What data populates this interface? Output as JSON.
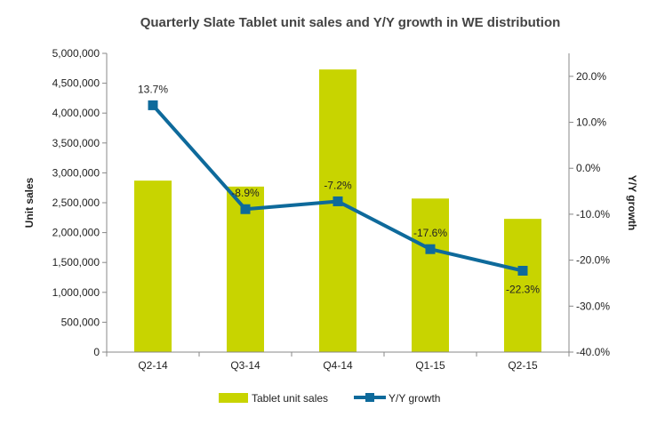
{
  "chart_data": {
    "type": "bar+line",
    "title": "Quarterly Slate Tablet unit sales and Y/Y growth in WE distribution",
    "categories": [
      "Q2-14",
      "Q3-14",
      "Q4-14",
      "Q1-15",
      "Q2-15"
    ],
    "series": [
      {
        "name": "Tablet unit sales",
        "type": "bar",
        "axis": "left",
        "color": "#c8d400",
        "values": [
          2870000,
          2770000,
          4730000,
          2570000,
          2230000
        ]
      },
      {
        "name": "Y/Y growth",
        "type": "line",
        "axis": "right",
        "color": "#0e6a9b",
        "values": [
          13.7,
          -8.9,
          -7.2,
          -17.6,
          -22.3
        ],
        "labels": [
          "13.7%",
          "-8.9%",
          "-7.2%",
          "-17.6%",
          "-22.3%"
        ]
      }
    ],
    "ylabel": "Unit sales",
    "y2label": "Y/Y growth",
    "ylim": [
      0,
      5000000
    ],
    "y2lim": [
      -40,
      25
    ],
    "yticks": [
      0,
      500000,
      1000000,
      1500000,
      2000000,
      2500000,
      3000000,
      3500000,
      4000000,
      4500000,
      5000000
    ],
    "yticklabels": [
      "0",
      "500,000",
      "1,000,000",
      "1,500,000",
      "2,000,000",
      "2,500,000",
      "3,000,000",
      "3,500,000",
      "4,000,000",
      "4,500,000",
      "5,000,000"
    ],
    "y2ticks": [
      -40,
      -30,
      -20,
      -10,
      0,
      10,
      20
    ],
    "y2ticklabels": [
      "-40.0%",
      "-30.0%",
      "-20.0%",
      "-10.0%",
      "0.0%",
      "10.0%",
      "20.0%"
    ],
    "grid": false,
    "legend_position": "bottom"
  }
}
